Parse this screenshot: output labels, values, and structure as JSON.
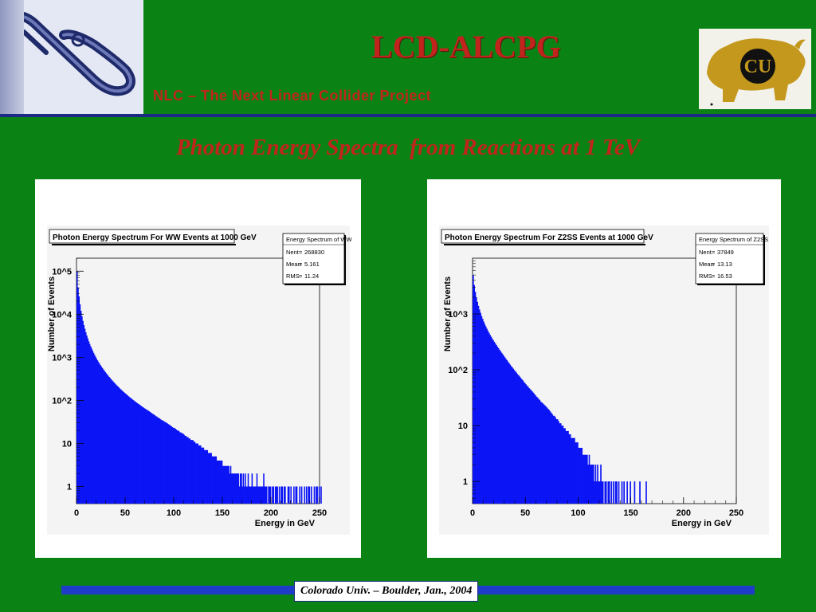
{
  "header": {
    "title": "LCD-ALCPG",
    "subtitle": "NLC – The Next Linear Collider Project"
  },
  "logos": {
    "left": "nlc-logo",
    "right": "cu-buffalo-logo",
    "right_letters": "CU"
  },
  "slide_heading": "Photon Energy Spectra  from Reactions at 1 TeV",
  "footer": {
    "text": "Colorado Univ. – Boulder, Jan., 2004"
  },
  "colors": {
    "background": "#0a8314",
    "accent_red": "#c0241c",
    "navy": "#1c2a86",
    "histogram_fill": "#0b14f5",
    "footer_bar": "#1e3cc8"
  },
  "chart_data": [
    {
      "type": "bar",
      "title": "Photon Energy Spectrum For WW Events at 1000 GeV",
      "xlabel": "Energy in GeV",
      "ylabel": "Number of Events",
      "xlim": [
        0,
        250
      ],
      "ylim": [
        0.4,
        200000
      ],
      "yscale": "log",
      "grid": false,
      "x_ticks": [
        "0",
        "50",
        "100",
        "150",
        "200",
        "250"
      ],
      "y_ticks": [
        "1",
        "10",
        "10^2",
        "10^3",
        "10^4",
        "10^5"
      ],
      "stats_box": {
        "title": "Energy Spectrum of WW",
        "rows": [
          {
            "label": "Nent",
            "value": "268830"
          },
          {
            "label": "Mean",
            "value": "5.161"
          },
          {
            "label": "RMS",
            "value": "11.24"
          }
        ]
      },
      "bin_width": 1,
      "values": [
        100000,
        42000,
        26000,
        17000,
        12000,
        9000,
        7000,
        5600,
        4600,
        3800,
        3200,
        2750,
        2350,
        2050,
        1800,
        1600,
        1420,
        1270,
        1140,
        1030,
        930,
        850,
        780,
        715,
        660,
        610,
        565,
        525,
        490,
        455,
        425,
        398,
        372,
        350,
        330,
        310,
        292,
        276,
        260,
        246,
        233,
        221,
        210,
        199,
        189,
        180,
        171,
        163,
        156,
        149,
        142,
        136,
        130,
        124,
        119,
        114,
        109,
        105,
        101,
        97,
        93,
        89,
        86,
        83,
        80,
        77,
        74,
        71,
        69,
        66,
        64,
        62,
        60,
        58,
        56,
        54,
        52,
        50,
        48,
        47,
        45,
        43,
        42,
        40,
        39,
        38,
        36,
        35,
        34,
        33,
        32,
        31,
        30,
        29,
        28,
        27,
        26,
        25,
        24,
        23,
        23,
        22,
        21,
        20,
        20,
        19,
        18,
        18,
        17,
        17,
        16,
        15,
        15,
        14,
        14,
        13,
        13,
        12,
        12,
        12,
        11,
        11,
        10,
        10,
        10,
        9,
        9,
        9,
        8,
        8,
        8,
        7,
        7,
        7,
        7,
        6,
        6,
        6,
        6,
        5,
        5,
        5,
        5,
        5,
        4,
        4,
        4,
        4,
        4,
        4,
        3,
        3,
        3,
        3,
        3,
        3,
        3,
        2,
        3,
        2,
        2,
        2,
        2,
        2,
        2,
        2,
        2,
        1,
        2,
        2,
        1,
        2,
        1,
        2,
        1,
        1,
        2,
        1,
        1,
        1,
        2,
        1,
        1,
        1,
        1,
        2,
        1,
        1,
        1,
        1,
        1,
        1,
        2,
        1,
        1,
        1,
        0,
        1,
        1,
        1,
        0,
        1,
        1,
        0,
        1,
        1,
        1,
        0,
        1,
        0,
        1,
        1,
        0,
        1,
        1,
        0,
        0,
        1,
        1,
        0,
        1,
        0,
        0,
        1,
        0,
        1,
        1,
        0,
        0,
        1,
        0,
        1,
        0,
        0,
        1,
        0,
        1,
        0,
        1,
        1,
        0,
        1,
        0,
        0,
        1,
        0,
        1,
        1,
        0,
        1,
        0,
        1
      ]
    },
    {
      "type": "bar",
      "title": "Photon Energy Spectrum For Z2SS Events at 1000 GeV",
      "xlabel": "Energy in GeV",
      "ylabel": "Number of Events",
      "xlim": [
        0,
        250
      ],
      "ylim": [
        0.4,
        10000
      ],
      "yscale": "log",
      "grid": false,
      "x_ticks": [
        "0",
        "50",
        "100",
        "150",
        "200",
        "250"
      ],
      "y_ticks": [
        "1",
        "10",
        "10^2",
        "10^3"
      ],
      "stats_box": {
        "title": "Energy Spectrum of Z2SS",
        "rows": [
          {
            "label": "Nent",
            "value": "37849"
          },
          {
            "label": "Mean",
            "value": "13.13"
          },
          {
            "label": "RMS",
            "value": "16.53"
          }
        ]
      },
      "bin_width": 1,
      "values": [
        5000,
        3300,
        2500,
        2000,
        1650,
        1400,
        1200,
        1050,
        920,
        820,
        730,
        660,
        600,
        545,
        500,
        460,
        425,
        393,
        365,
        340,
        318,
        297,
        278,
        260,
        244,
        229,
        215,
        202,
        190,
        179,
        168,
        158,
        149,
        140,
        132,
        124,
        117,
        111,
        105,
        99,
        94,
        89,
        84,
        80,
        76,
        72,
        68,
        65,
        61,
        58,
        55,
        52,
        50,
        47,
        45,
        43,
        41,
        39,
        37,
        35,
        33,
        32,
        30,
        29,
        27,
        26,
        25,
        24,
        23,
        22,
        21,
        20,
        19,
        18,
        17,
        16,
        15,
        15,
        14,
        13,
        13,
        12,
        11,
        11,
        10,
        10,
        9,
        9,
        8,
        8,
        8,
        7,
        7,
        6,
        6,
        6,
        6,
        5,
        5,
        5,
        4,
        4,
        4,
        4,
        3,
        3,
        3,
        3,
        3,
        2,
        3,
        2,
        2,
        2,
        2,
        1,
        2,
        1,
        2,
        1,
        1,
        2,
        1,
        1,
        0,
        1,
        1,
        0,
        1,
        1,
        0,
        1,
        0,
        1,
        0,
        1,
        1,
        0,
        1,
        0,
        0,
        1,
        0,
        1,
        0,
        0,
        1,
        0,
        0,
        1,
        0,
        0,
        0,
        1,
        0,
        0,
        0,
        0,
        1,
        0,
        0,
        0,
        0,
        0,
        1,
        0,
        0,
        0,
        0,
        0,
        0,
        0,
        0,
        0,
        0,
        0,
        0,
        0,
        0,
        0,
        0,
        0,
        0,
        0,
        0,
        0,
        0,
        0,
        0,
        0,
        0,
        0,
        0,
        0,
        0,
        0,
        0,
        0,
        0,
        0,
        0,
        0,
        0,
        0,
        0,
        0,
        0,
        0,
        0,
        0,
        0,
        0,
        0,
        0,
        0,
        0,
        0,
        0,
        0,
        0,
        0,
        0,
        0,
        0,
        0,
        0,
        0,
        0,
        0,
        0,
        0,
        0,
        0,
        0,
        0,
        0,
        0,
        0,
        0,
        0,
        0,
        0,
        0,
        0,
        0,
        0,
        0,
        0,
        0,
        0,
        0,
        0,
        0
      ]
    }
  ]
}
